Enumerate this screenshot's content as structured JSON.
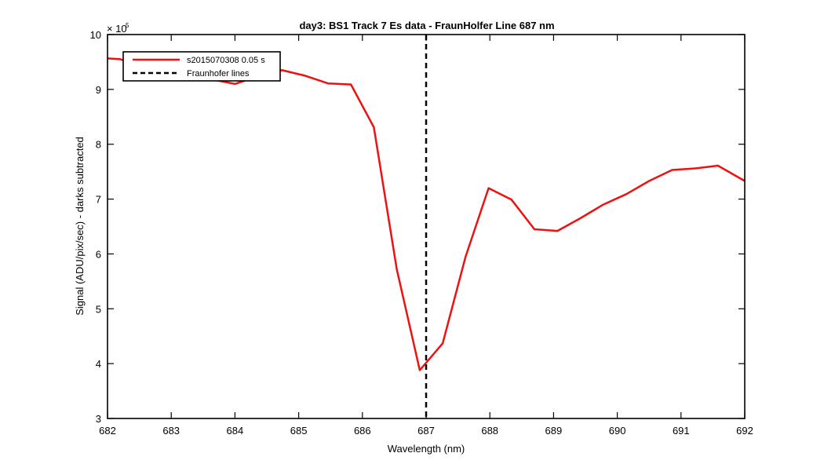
{
  "chart_data": {
    "type": "line",
    "title": "day3: BS1  Track 7 Es data - FraunHolfer Line 687 nm",
    "xlabel": "Wavelength (nm)",
    "ylabel": "Signal (ADU/pix/sec) - darks subtracted",
    "y_exponent_label": "× 10",
    "y_exponent": "5",
    "xlim": [
      682,
      692
    ],
    "ylim": [
      3,
      10
    ],
    "xticks": [
      "682",
      "683",
      "684",
      "685",
      "686",
      "687",
      "688",
      "689",
      "690",
      "691",
      "692"
    ],
    "yticks": [
      "3",
      "4",
      "5",
      "6",
      "7",
      "8",
      "9",
      "10"
    ],
    "grid": false,
    "legend_position": "top-left",
    "series": [
      {
        "name": "s2015070308 0.05 s",
        "color": "#ee1111",
        "style": "solid",
        "x": [
          681.8,
          682.2,
          682.6,
          682.95,
          683.3,
          683.65,
          684.0,
          684.38,
          684.74,
          685.1,
          685.46,
          685.82,
          686.18,
          686.54,
          686.9,
          687.26,
          687.62,
          687.98,
          688.34,
          688.7,
          689.06,
          689.42,
          689.78,
          690.14,
          690.5,
          690.86,
          691.22,
          691.58,
          692.0
        ],
        "y": [
          9.58,
          9.55,
          9.4,
          9.3,
          9.22,
          9.18,
          9.1,
          9.25,
          9.35,
          9.25,
          9.11,
          9.09,
          8.31,
          5.72,
          3.88,
          4.37,
          5.95,
          7.2,
          6.99,
          6.45,
          6.42,
          6.65,
          6.9,
          7.09,
          7.33,
          7.53,
          7.56,
          7.61,
          7.33
        ]
      }
    ],
    "vlines": [
      {
        "name": "Fraunhofer lines",
        "x": 687,
        "color": "#000000",
        "style": "dashed"
      }
    ]
  }
}
